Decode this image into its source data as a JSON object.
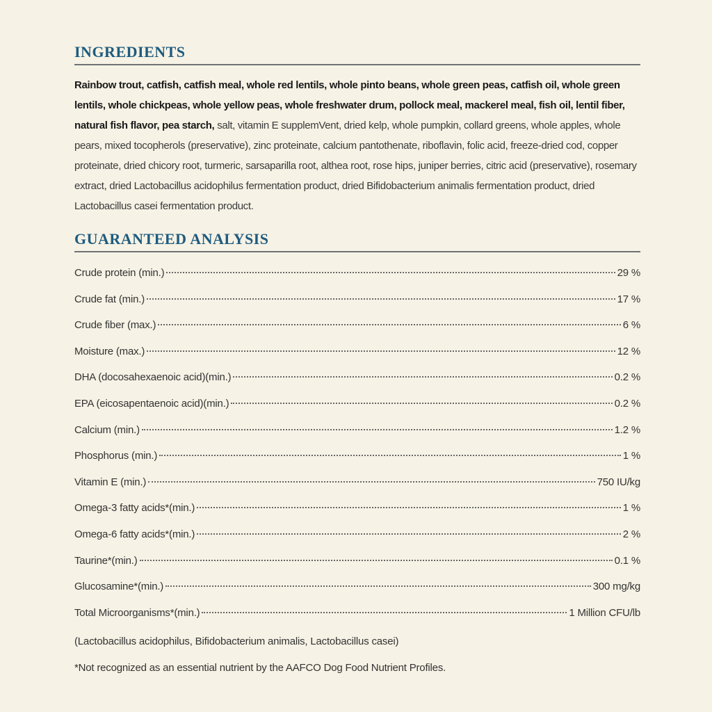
{
  "ingredients": {
    "heading": "INGREDIENTS",
    "bold_text": "Rainbow trout, catfish, catfish meal, whole red lentils, whole pinto beans, whole green peas, catfish oil, whole green lentils, whole chickpeas, whole yellow peas, whole freshwater drum, pollock meal, mackerel meal, fish oil, lentil fiber, natural fish flavor, pea starch, ",
    "regular_text": "salt, vitamin E supplemVent, dried kelp, whole pumpkin, collard greens, whole apples, whole pears, mixed tocopherols (preservative), zinc proteinate, calcium pantothenate, riboflavin, folic acid, freeze-dried cod, copper proteinate, dried chicory root, turmeric, sarsaparilla root, althea root, rose hips, juniper berries, citric acid (preservative), rosemary extract, dried Lactobacillus acidophilus fermentation product, dried Bifidobacterium animalis fermentation product, dried Lactobacillus casei fermentation product."
  },
  "analysis": {
    "heading": "GUARANTEED ANALYSIS",
    "rows": [
      [
        "Crude protein (min.)",
        "29 %"
      ],
      [
        "Crude fat (min.)",
        "17 %"
      ],
      [
        "Crude fiber (max.)",
        "6 %"
      ],
      [
        "Moisture (max.)",
        "12 %"
      ],
      [
        "DHA (docosahexaenoic acid)(min.)",
        "0.2 %"
      ],
      [
        "EPA (eicosapentaenoic acid)(min.)",
        "0.2 %"
      ],
      [
        "Calcium (min.)",
        "1.2 %"
      ],
      [
        "Phosphorus (min.)",
        "1 %"
      ],
      [
        "Vitamin E (min.)",
        "750 IU/kg"
      ],
      [
        "Omega-3 fatty acids*(min.)",
        "1 %"
      ],
      [
        "Omega-6 fatty acids*(min.)",
        "2 %"
      ],
      [
        "Taurine*(min.)",
        "0.1 %"
      ],
      [
        "Glucosamine*(min.)",
        "300 mg/kg"
      ],
      [
        "Total Microorganisms*(min.)",
        "1 Million CFU/lb"
      ]
    ],
    "organisms_note": "(Lactobacillus acidophilus, Bifidobacterium animalis, Lactobacillus casei)",
    "footnote": "*Not recognized as an essential nutrient by the AAFCO Dog Food Nutrient Profiles."
  }
}
